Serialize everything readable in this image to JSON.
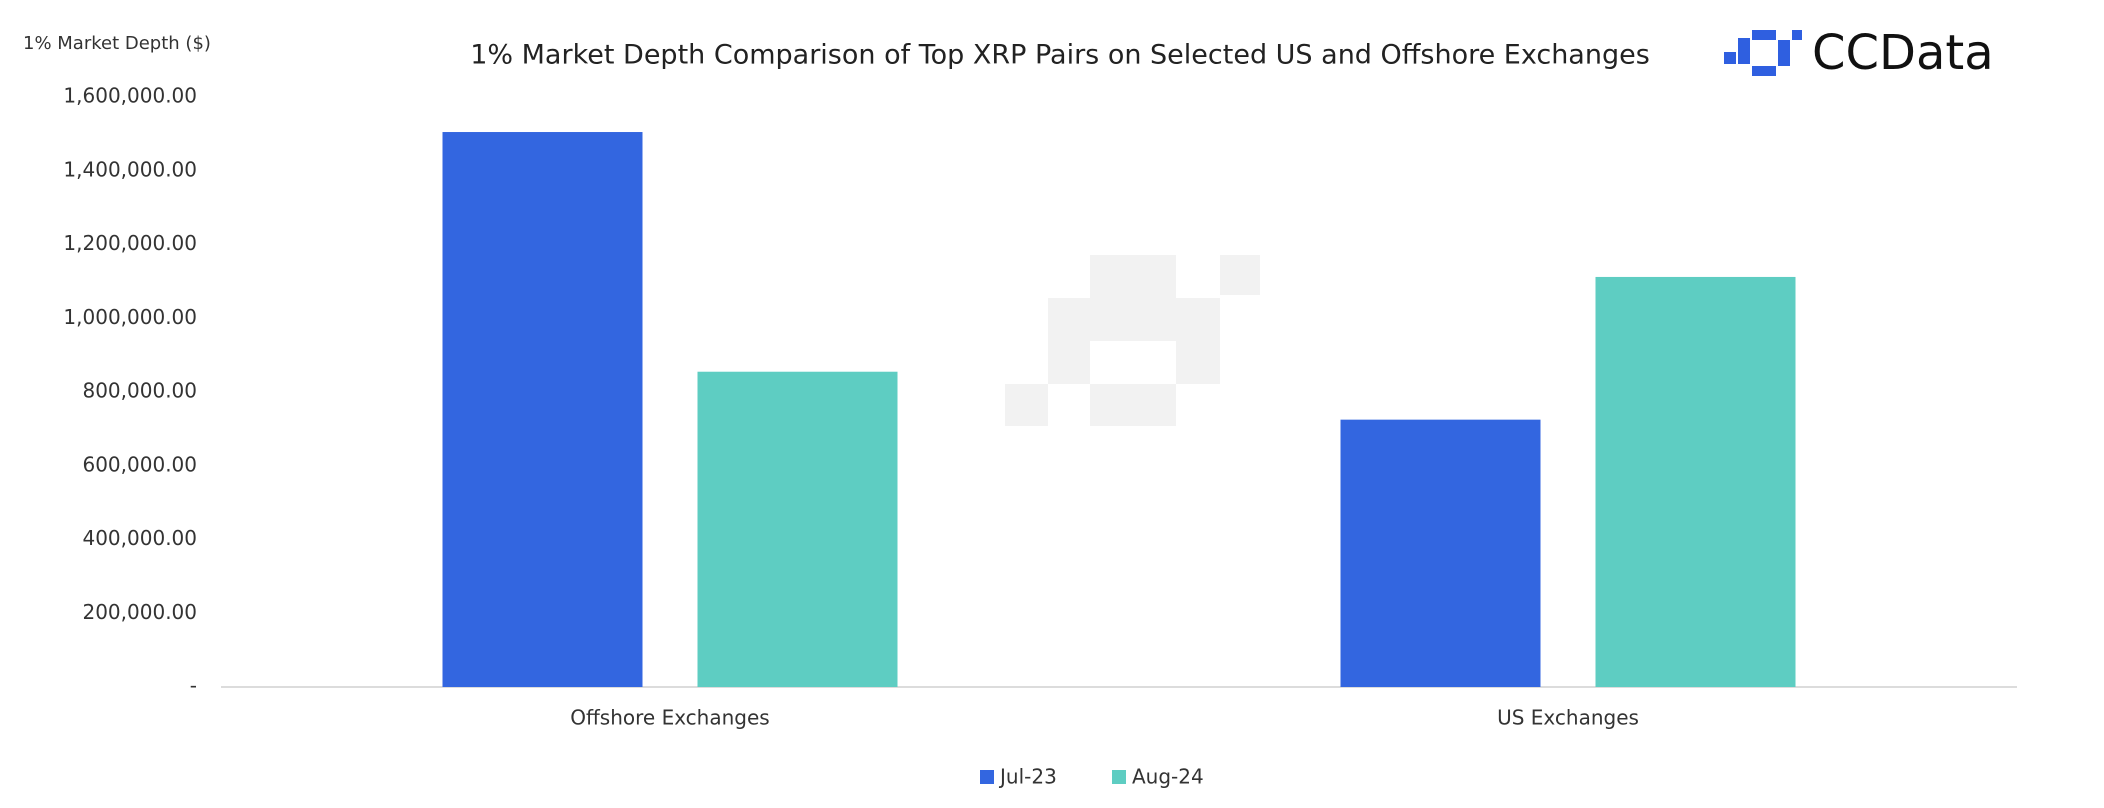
{
  "chart_data": {
    "type": "bar",
    "title": "1% Market Depth Comparison of Top XRP Pairs on Selected US and Offshore Exchanges",
    "y_label": "1% Market Depth ($)",
    "logo": "CCData",
    "categories": [
      "Offshore Exchanges",
      "US Exchanges"
    ],
    "series": [
      {
        "name": "Jul-23",
        "color": "#3366e0",
        "values": [
          1505000,
          725000
        ]
      },
      {
        "name": "Aug-24",
        "color": "#5ecdc2",
        "values": [
          855000,
          1112000
        ]
      }
    ],
    "ylim": [
      0,
      1600000
    ],
    "yticks": [
      {
        "value": 0,
        "label": "-"
      },
      {
        "value": 200000,
        "label": "200,000.00"
      },
      {
        "value": 400000,
        "label": "400,000.00"
      },
      {
        "value": 600000,
        "label": "600,000.00"
      },
      {
        "value": 800000,
        "label": "800,000.00"
      },
      {
        "value": 1000000,
        "label": "1,000,000.00"
      },
      {
        "value": 1200000,
        "label": "1,200,000.00"
      },
      {
        "value": 1400000,
        "label": "1,400,000.00"
      },
      {
        "value": 1600000,
        "label": "1,600,000.00"
      }
    ],
    "grid": false,
    "legend": "bottom"
  }
}
